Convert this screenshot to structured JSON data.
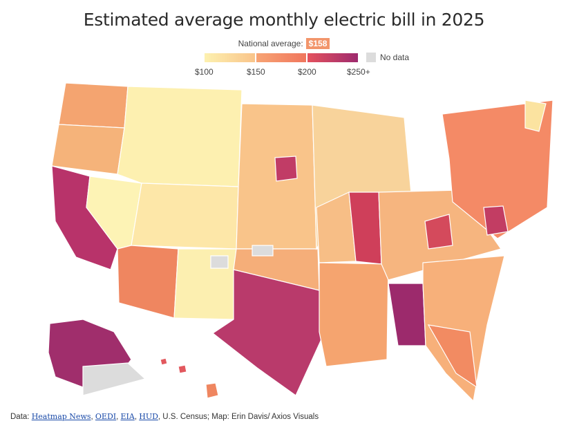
{
  "title": "Estimated average monthly electric bill in 2025",
  "legend": {
    "national_average_label": "National average:",
    "national_average_value": "$158",
    "ticks": [
      "$100",
      "$150",
      "$200",
      "$250+"
    ],
    "no_data_label": "No data",
    "colors": {
      "low": "#fdf1b0",
      "mid": "#f0765d",
      "high": "#9e2a6e",
      "no_data": "#dcdcdc"
    }
  },
  "footer": {
    "prefix": "Data:",
    "links": [
      "Heatmap News",
      "OEDI",
      "EIA",
      "HUD"
    ],
    "suffix": ", U.S. Census; Map: Erin Davis/ Axios Visuals"
  }
}
